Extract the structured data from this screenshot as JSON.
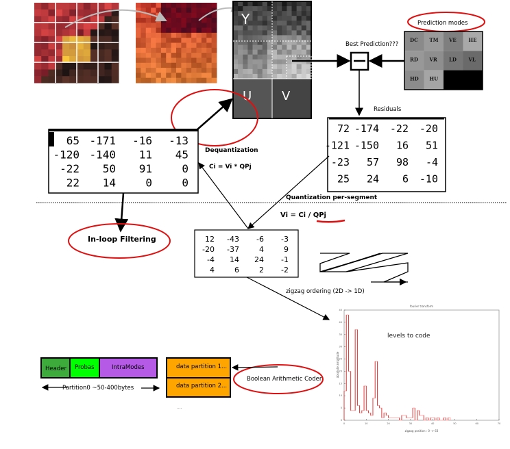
{
  "colors": {
    "ellipse": "#e01010",
    "header": "#3cab3c",
    "probas": "#00ff00",
    "intramodes": "#b45ae6",
    "partition": "#ffa500",
    "chart_line": "#e02020",
    "chart_line_light": "#ffb0b0"
  },
  "yuv": {
    "y": "Y",
    "u": "U",
    "v": "V"
  },
  "prediction": {
    "title": "Prediction modes",
    "best": "Best Prediction???",
    "modes": [
      "DC",
      "TM",
      "VE",
      "HE",
      "RD",
      "VR",
      "LD",
      "VL",
      "HD",
      "HU"
    ]
  },
  "residuals": {
    "label": "Residuals",
    "matrix": [
      [
        "72",
        "-174",
        "-22",
        "-20"
      ],
      [
        "-121",
        "-150",
        "16",
        "51"
      ],
      [
        "-23",
        "57",
        "98",
        "-4"
      ],
      [
        "25",
        "24",
        "6",
        "-10"
      ]
    ]
  },
  "dequant": {
    "label": "Dequantization",
    "formula": "Ci = Vi * QPj",
    "matrix": [
      [
        "65",
        "-171",
        "-16",
        "-13"
      ],
      [
        "-120",
        "-140",
        "11",
        "45"
      ],
      [
        "-22",
        "50",
        "91",
        "0"
      ],
      [
        "22",
        "14",
        "0",
        "0"
      ]
    ]
  },
  "quant": {
    "label": "Quantization per-segment",
    "formula": "Vi = Ci / QPj",
    "matrix": [
      [
        "12",
        "-43",
        "-6",
        "-3"
      ],
      [
        "-20",
        "-37",
        "4",
        "9"
      ],
      [
        "-4",
        "14",
        "24",
        "-1"
      ],
      [
        "4",
        "6",
        "2",
        "-2"
      ]
    ]
  },
  "zigzag": {
    "label": "zigzag ordering  (2D -> 1D)"
  },
  "inloop": {
    "label": "In-loop Filtering"
  },
  "bac": {
    "label": "Boolean Arithmetic Coder"
  },
  "partition0": {
    "header": "Header",
    "probas": "Probas",
    "intramodes": "IntraModes",
    "size": "Partition0 ~50-400bytes"
  },
  "data_partitions": [
    "data partition 1...",
    "data partition 2...",
    "...."
  ],
  "chart_data": {
    "type": "line",
    "title": "fourier transform",
    "annotation": "levels to code",
    "xlabel": "zigzag position : 0 -> 63",
    "ylabel": "absolute amplitude",
    "xlim": [
      0,
      70
    ],
    "ylim": [
      0,
      45
    ],
    "xticks": [
      "0",
      "10",
      "20",
      "30",
      "40",
      "50",
      "60",
      "70"
    ],
    "yticks": [
      "0",
      "5",
      "10",
      "15",
      "20",
      "25",
      "30",
      "35",
      "40",
      "45"
    ],
    "x": [
      0,
      1,
      2,
      3,
      4,
      5,
      6,
      7,
      8,
      9,
      10,
      11,
      12,
      13,
      14,
      15,
      16,
      17,
      18,
      19,
      20,
      21,
      22,
      23,
      24,
      25,
      26,
      27,
      28,
      29,
      30,
      31,
      32,
      33,
      34,
      35,
      36,
      37,
      38,
      39,
      40,
      41,
      42,
      43,
      44,
      45,
      46,
      47
    ],
    "values": [
      12,
      43,
      20,
      4,
      4,
      37,
      6,
      3,
      4,
      14,
      4,
      3,
      2,
      9,
      24,
      6,
      5,
      1,
      3,
      2,
      1,
      1,
      1,
      1,
      1,
      0,
      2,
      2,
      1,
      1,
      1,
      5,
      0,
      4,
      2,
      2,
      0,
      1,
      0,
      1,
      1,
      0,
      1,
      0,
      0,
      1,
      0,
      1
    ]
  }
}
